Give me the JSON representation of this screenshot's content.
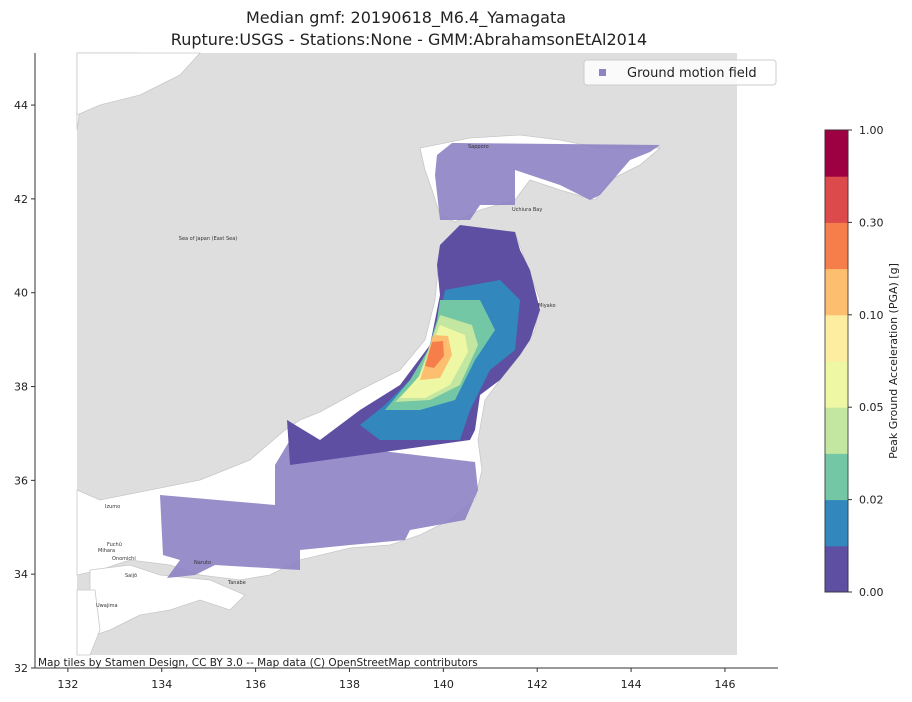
{
  "chart_data": {
    "type": "map",
    "title": "Median gmf: 20190618_M6.4_Yamagata",
    "subtitle": "Rupture:USGS -  Stations:None - GMM:AbrahamsonEtAl2014",
    "xlim": [
      131.3,
      147.13
    ],
    "ylim": [
      32.0,
      45.11
    ],
    "xticks": [
      132,
      134,
      136,
      138,
      140,
      142,
      144,
      146
    ],
    "yticks": [
      32,
      34,
      36,
      38,
      40,
      42,
      44
    ],
    "legend": {
      "label": "Ground motion field",
      "color": "#8c82c4",
      "position": "upper right"
    },
    "attribution": "Map tiles by Stamen Design, CC BY 3.0 -- Map data (C) OpenStreetMap contributors",
    "colorbar": {
      "label": "Peak Ground Acceleration (PGA) [g]",
      "levels": [
        0,
        0.01,
        0.02,
        0.03,
        0.05,
        0.07,
        0.1,
        0.2,
        0.3,
        0.5,
        1.0
      ],
      "colors": [
        "#5e4fa2",
        "#3288bd",
        "#74c7a5",
        "#c3e6a0",
        "#eef7a3",
        "#fdeda0",
        "#fdbf6f",
        "#f67e4b",
        "#dc4a4c",
        "#9e0142"
      ],
      "ticks": [
        {
          "value": 0,
          "label": "0.00"
        },
        {
          "value": 0.02,
          "label": "0.02"
        },
        {
          "value": 0.05,
          "label": "0.05"
        },
        {
          "value": 0.1,
          "label": "0.10"
        },
        {
          "value": 0.3,
          "label": "0.30"
        },
        {
          "value": 1.0,
          "label": "1.00"
        }
      ]
    },
    "places": [
      "Miyako",
      "Izumo",
      "Fuchū",
      "Mihara",
      "Onomichi",
      "Saijō",
      "Naruto",
      "Tanabe",
      "Uwajima",
      "Sapporo",
      "Uchiura Bay",
      "Sea of Japan (East Sea)"
    ]
  }
}
